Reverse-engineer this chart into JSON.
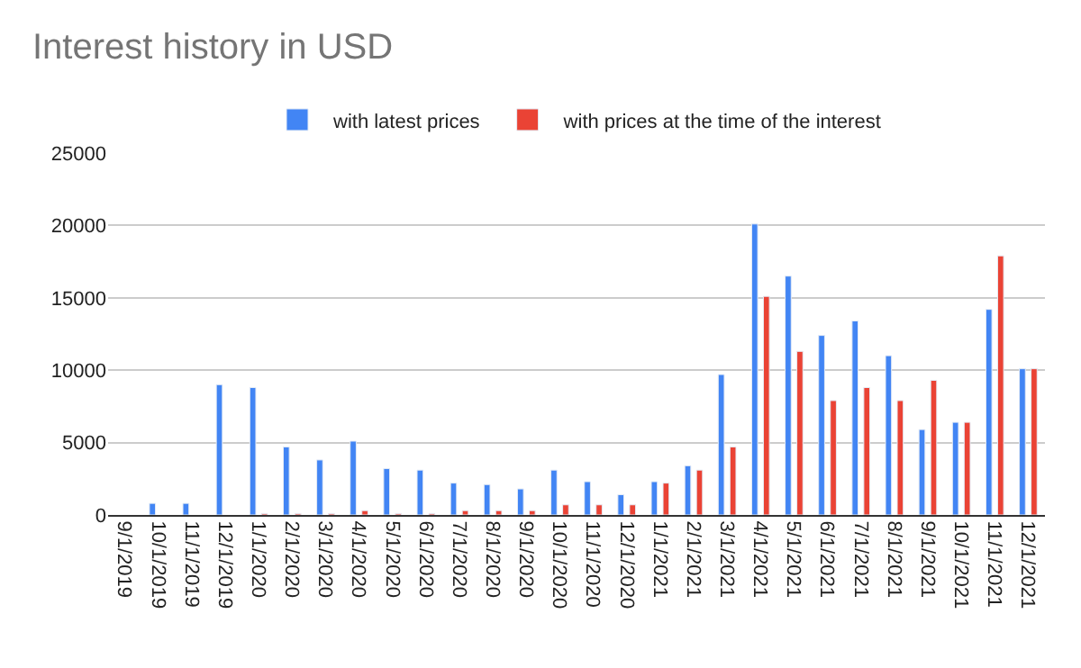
{
  "chart_data": {
    "type": "bar",
    "title": "Interest history in USD",
    "categories": [
      "9/1/2019",
      "10/1/2019",
      "11/1/2019",
      "12/1/2019",
      "1/1/2020",
      "2/1/2020",
      "3/1/2020",
      "4/1/2020",
      "5/1/2020",
      "6/1/2020",
      "7/1/2020",
      "8/1/2020",
      "9/1/2020",
      "10/1/2020",
      "11/1/2020",
      "12/1/2020",
      "1/1/2021",
      "2/1/2021",
      "3/1/2021",
      "4/1/2021",
      "5/1/2021",
      "6/1/2021",
      "7/1/2021",
      "8/1/2021",
      "9/1/2021",
      "10/1/2021",
      "11/1/2021",
      "12/1/2021"
    ],
    "series": [
      {
        "name": "with latest prices",
        "color": "#4285f4",
        "values": [
          null,
          800,
          800,
          9000,
          8800,
          4700,
          3800,
          5100,
          3200,
          3100,
          2200,
          2100,
          1800,
          3100,
          2300,
          1400,
          2300,
          3400,
          9700,
          20100,
          16500,
          12400,
          13400,
          11000,
          5900,
          6400,
          14200,
          10100
        ]
      },
      {
        "name": "with prices at the time of the interest",
        "color": "#ea4335",
        "values": [
          null,
          null,
          null,
          null,
          100,
          100,
          100,
          300,
          100,
          100,
          300,
          300,
          300,
          700,
          700,
          700,
          2200,
          3100,
          4700,
          15100,
          11300,
          7900,
          8800,
          7900,
          9300,
          6400,
          17900,
          10100
        ]
      }
    ],
    "ylim": [
      0,
      25000
    ],
    "yticks": [
      0,
      5000,
      10000,
      15000,
      20000,
      25000
    ],
    "grid": "y",
    "legend": "top"
  }
}
